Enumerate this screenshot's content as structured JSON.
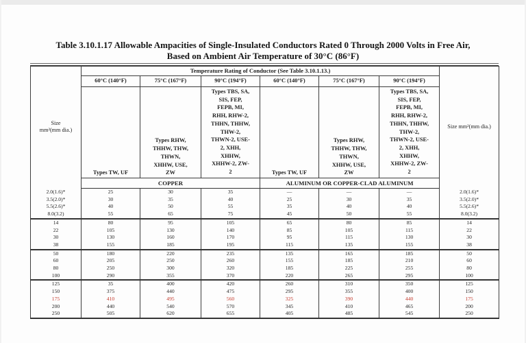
{
  "page": {
    "title": "Table 3.10.1.17 Allowable Ampacities of Single-Insulated Conductors Rated 0 Through 2000 Volts in Free Air,\nBased on Ambient Air Temperature of 30°C (86°F)"
  },
  "table": {
    "temp_rating_header": "Temperature Rating of Conductor (See Table 3.10.1.13.)",
    "size_header_left": "Size\nmm²(mm dia.)",
    "size_header_right": "Size mm²(mm dia.)",
    "temp_columns": [
      "60°C (140°F)",
      "75°C (167°F)",
      "90°C (194°F)",
      "60°C (140°F)",
      "75°C (167°F)",
      "90°C (194°F)"
    ],
    "types_60": "Types TW, UF",
    "types_75": "Types RHW,\nTHHW, THW,\nTHWN,\nXHHW, USE,\nZW",
    "types_90": "Types TBS, SA,\nSIS, FEP,\nFEPB, MI,\nRHH, RHW-2,\nTHHN, THHW,\nTHW-2,\nTHWN-2, USE-\n2, XHH,\nXHHW,\nXHHW-2, ZW-\n2",
    "material_copper": "COPPER",
    "material_aluminum": "ALUMINUM OR COPPER-CLAD ALUMINUM",
    "accent_red": "#c23527",
    "rows": [
      {
        "size": "2.0(1.6)*",
        "values": [
          "25",
          "30",
          "35",
          "—",
          "—",
          "—"
        ]
      },
      {
        "size": "3.5(2.0)*",
        "values": [
          "30",
          "35",
          "40",
          "25",
          "30",
          "35"
        ]
      },
      {
        "size": "5.5(2.6)*",
        "values": [
          "40",
          "50",
          "55",
          "35",
          "40",
          "40"
        ]
      },
      {
        "size": "8.0(3.2)",
        "values": [
          "55",
          "65",
          "75",
          "45",
          "50",
          "55"
        ]
      },
      {
        "size": "14",
        "values": [
          "80",
          "95",
          "105",
          "65",
          "80",
          "85"
        ],
        "group": true
      },
      {
        "size": "22",
        "values": [
          "105",
          "130",
          "140",
          "85",
          "105",
          "115"
        ]
      },
      {
        "size": "30",
        "values": [
          "130",
          "160",
          "170",
          "95",
          "115",
          "130"
        ]
      },
      {
        "size": "38",
        "values": [
          "155",
          "185",
          "195",
          "115",
          "135",
          "155"
        ]
      },
      {
        "size": "50",
        "values": [
          "180",
          "220",
          "235",
          "135",
          "165",
          "185"
        ],
        "group": true
      },
      {
        "size": "60",
        "values": [
          "205",
          "250",
          "260",
          "155",
          "185",
          "210"
        ]
      },
      {
        "size": "80",
        "values": [
          "250",
          "300",
          "320",
          "185",
          "225",
          "255"
        ]
      },
      {
        "size": "100",
        "values": [
          "290",
          "355",
          "370",
          "220",
          "265",
          "295"
        ]
      },
      {
        "size": "125",
        "values": [
          "35",
          "400",
          "420",
          "260",
          "310",
          "350"
        ],
        "group": true
      },
      {
        "size": "150",
        "values": [
          "375",
          "440",
          "475",
          "295",
          "355",
          "400"
        ]
      },
      {
        "size": "175",
        "values": [
          "410",
          "495",
          "560",
          "325",
          "390",
          "440"
        ],
        "red": true
      },
      {
        "size": "200",
        "values": [
          "440",
          "540",
          "570",
          "345",
          "410",
          "465"
        ]
      },
      {
        "size": "250",
        "values": [
          "505",
          "620",
          "655",
          "405",
          "485",
          "545"
        ]
      }
    ]
  }
}
